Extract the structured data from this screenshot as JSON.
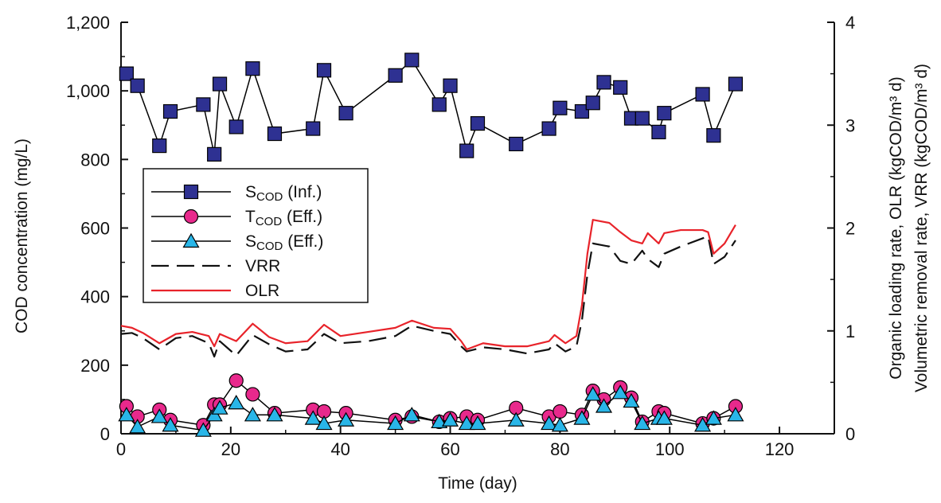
{
  "chart_data": {
    "type": "line",
    "xlabel": "Time (day)",
    "ylabel": "COD concentration (mg/L)",
    "y2label_lines": [
      "Organic loading rate, OLR (kgCOD/m³ d)",
      "Volumetric removal rate, VRR (kgCOD/m³ d)"
    ],
    "xlim": [
      0,
      130
    ],
    "ylim": [
      0,
      1200
    ],
    "y2lim": [
      0,
      4
    ],
    "xticks": [
      0,
      20,
      40,
      60,
      80,
      100,
      120
    ],
    "xtick_labels": [
      "0",
      "20",
      "40",
      "60",
      "80",
      "100",
      "120"
    ],
    "yticks": [
      0,
      200,
      400,
      600,
      800,
      1000,
      1200
    ],
    "ytick_labels": [
      "0",
      "200",
      "400",
      "600",
      "800",
      "1,000",
      "1,200"
    ],
    "y2ticks": [
      0,
      1,
      2,
      3,
      4
    ],
    "y2tick_labels": [
      "0",
      "1",
      "2",
      "3",
      "4"
    ],
    "grid": false,
    "legend_position": "center-left",
    "series": [
      {
        "name": "S",
        "name_sub": "COD",
        "name_suffix": " (Inf.)",
        "axis": "left",
        "marker": "square",
        "color": "#2e3192",
        "line_color": "#000000",
        "x": [
          1,
          3,
          7,
          9,
          15,
          17,
          18,
          21,
          24,
          28,
          35,
          37,
          41,
          50,
          53,
          58,
          60,
          63,
          65,
          72,
          78,
          80,
          84,
          86,
          88,
          91,
          93,
          95,
          98,
          99,
          106,
          108,
          112
        ],
        "y": [
          1050,
          1015,
          840,
          940,
          960,
          815,
          1020,
          895,
          1065,
          875,
          890,
          1060,
          935,
          1045,
          1090,
          960,
          1015,
          825,
          905,
          845,
          890,
          950,
          940,
          965,
          1025,
          1010,
          920,
          920,
          880,
          935,
          990,
          870,
          1020
        ]
      },
      {
        "name": "T",
        "name_sub": "COD",
        "name_suffix": " (Eff.)",
        "axis": "left",
        "marker": "circle",
        "color": "#e8298c",
        "line_color": "#000000",
        "x": [
          1,
          3,
          7,
          9,
          15,
          17,
          18,
          21,
          24,
          28,
          35,
          37,
          41,
          50,
          53,
          58,
          60,
          63,
          65,
          72,
          78,
          80,
          84,
          86,
          88,
          91,
          93,
          95,
          98,
          99,
          106,
          108,
          112
        ],
        "y": [
          80,
          50,
          70,
          40,
          25,
          85,
          85,
          155,
          115,
          60,
          70,
          65,
          60,
          40,
          50,
          35,
          45,
          50,
          40,
          75,
          50,
          65,
          55,
          125,
          100,
          135,
          105,
          35,
          65,
          60,
          30,
          45,
          80
        ]
      },
      {
        "name": "S",
        "name_sub": "COD",
        "name_suffix": " (Eff.)",
        "axis": "left",
        "marker": "triangle",
        "color": "#29b6e8",
        "line_color": "#000000",
        "x": [
          1,
          3,
          7,
          9,
          15,
          17,
          18,
          21,
          24,
          28,
          35,
          37,
          41,
          50,
          53,
          58,
          60,
          63,
          65,
          72,
          78,
          80,
          84,
          86,
          88,
          91,
          93,
          95,
          98,
          99,
          106,
          108,
          112
        ],
        "y": [
          55,
          20,
          50,
          25,
          10,
          55,
          75,
          90,
          55,
          55,
          45,
          30,
          40,
          30,
          55,
          35,
          40,
          30,
          30,
          40,
          30,
          25,
          45,
          115,
          80,
          120,
          95,
          30,
          45,
          45,
          25,
          45,
          55
        ]
      },
      {
        "name": "VRR",
        "axis": "right",
        "style": "dashed",
        "color": "#111111",
        "x": [
          0,
          2,
          4,
          7,
          10,
          13,
          16,
          17,
          18,
          21,
          24,
          27,
          30,
          34,
          37,
          40,
          45,
          50,
          53,
          57,
          60,
          62,
          63,
          66,
          70,
          74,
          78,
          79,
          81,
          83,
          84,
          85,
          86,
          89,
          91,
          93,
          95,
          96,
          98,
          99,
          102,
          106,
          107,
          108,
          110,
          112
        ],
        "y": [
          0.97,
          0.98,
          0.93,
          0.82,
          0.93,
          0.95,
          0.88,
          0.75,
          0.9,
          0.76,
          0.96,
          0.87,
          0.8,
          0.82,
          0.97,
          0.88,
          0.9,
          0.95,
          1.05,
          1.0,
          0.97,
          0.85,
          0.8,
          0.84,
          0.82,
          0.78,
          0.82,
          0.88,
          0.8,
          0.85,
          1.1,
          1.55,
          1.85,
          1.82,
          1.68,
          1.65,
          1.78,
          1.7,
          1.62,
          1.75,
          1.82,
          1.9,
          1.92,
          1.65,
          1.72,
          1.88
        ]
      },
      {
        "name": "OLR",
        "axis": "right",
        "style": "solid",
        "color": "#e8232a",
        "x": [
          0,
          2,
          4,
          7,
          10,
          13,
          16,
          17,
          18,
          21,
          24,
          27,
          30,
          34,
          37,
          40,
          45,
          50,
          53,
          57,
          60,
          62,
          63,
          66,
          70,
          74,
          78,
          79,
          81,
          83,
          84,
          85,
          86,
          89,
          91,
          93,
          95,
          96,
          98,
          99,
          102,
          106,
          107,
          108,
          110,
          112
        ],
        "y": [
          1.05,
          1.03,
          0.98,
          0.88,
          0.97,
          0.99,
          0.95,
          0.85,
          0.97,
          0.9,
          1.07,
          0.94,
          0.88,
          0.9,
          1.06,
          0.95,
          0.99,
          1.03,
          1.1,
          1.03,
          1.02,
          0.9,
          0.82,
          0.88,
          0.85,
          0.85,
          0.9,
          0.96,
          0.88,
          0.95,
          1.25,
          1.75,
          2.08,
          2.05,
          1.96,
          1.88,
          1.85,
          1.95,
          1.85,
          1.95,
          1.98,
          1.98,
          1.96,
          1.75,
          1.85,
          2.03
        ]
      }
    ]
  }
}
